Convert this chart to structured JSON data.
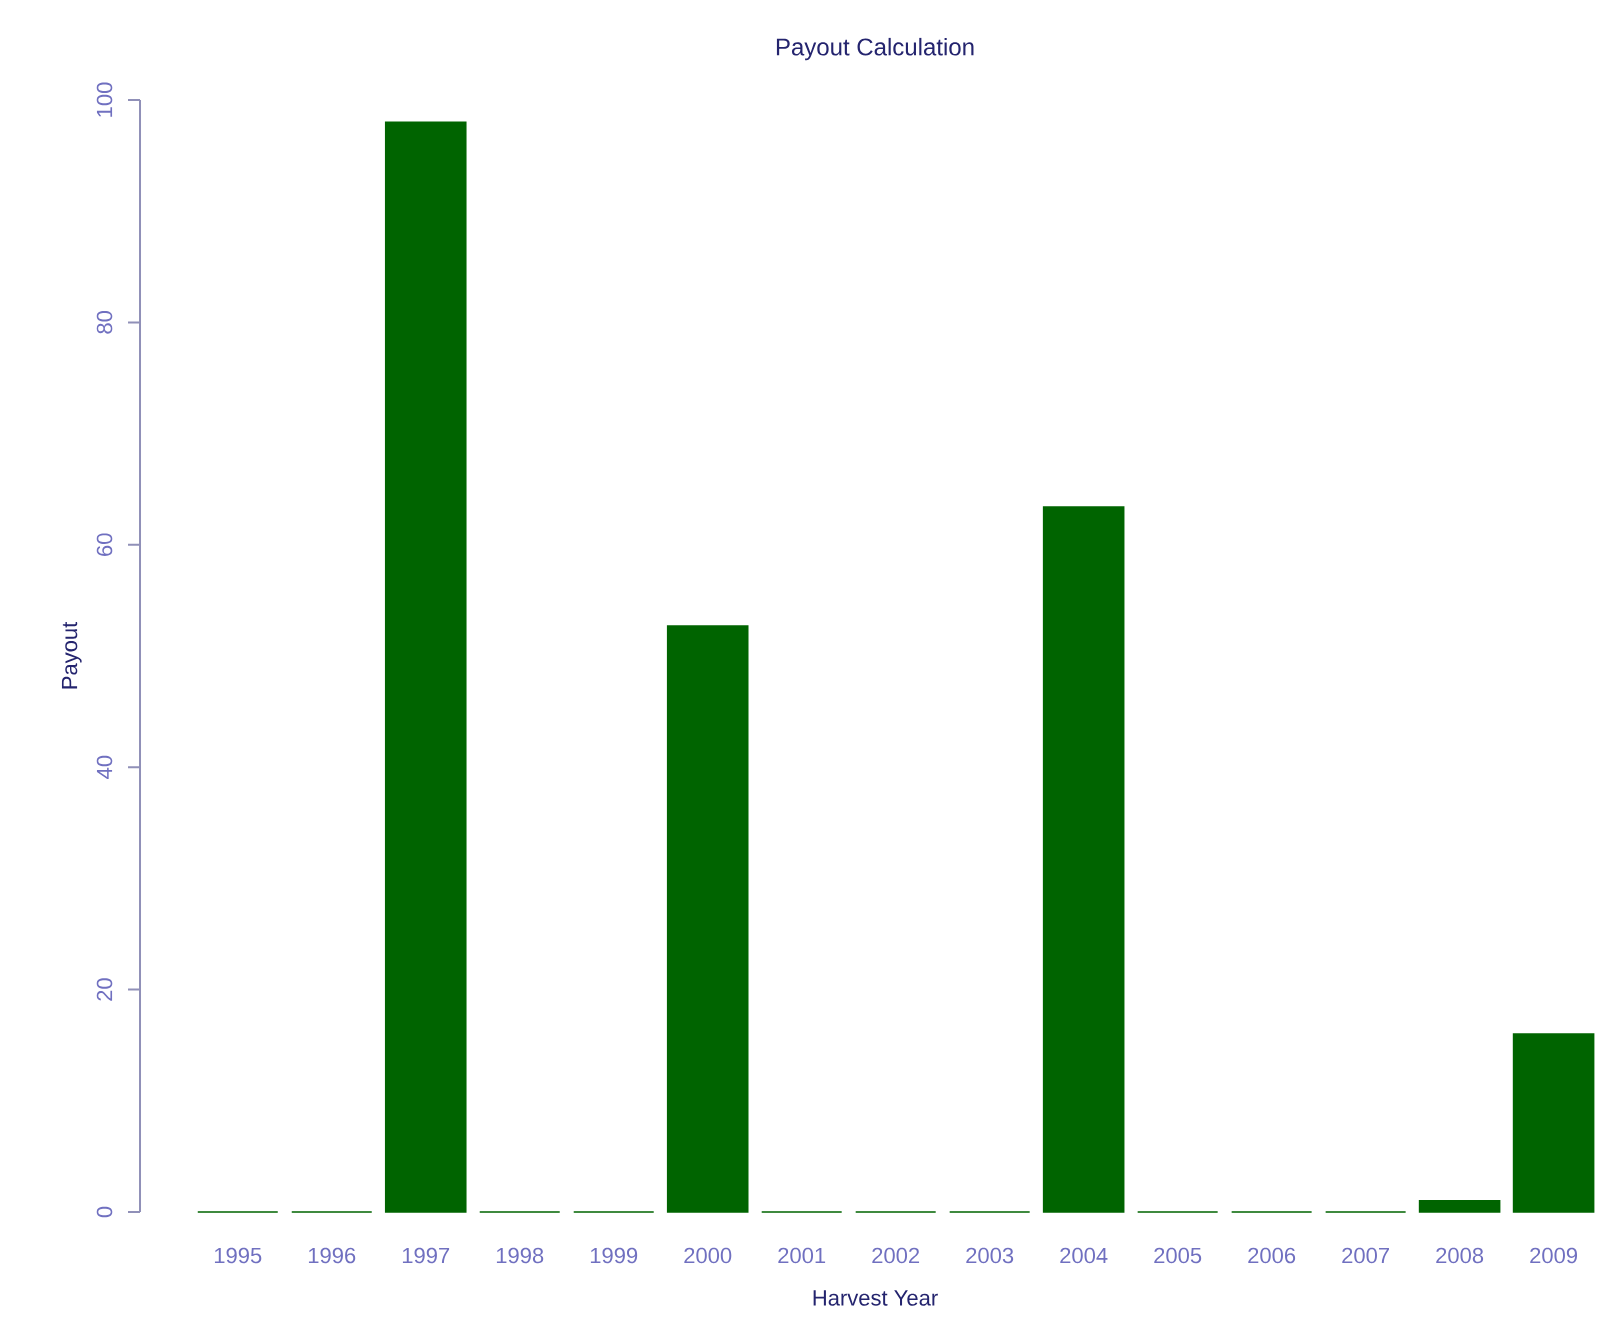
{
  "chart_data": {
    "type": "bar",
    "title": "Payout Calculation",
    "xlabel": "Harvest Year",
    "ylabel": "Payout",
    "categories": [
      "1995",
      "1996",
      "1997",
      "1998",
      "1999",
      "2000",
      "2001",
      "2002",
      "2003",
      "2004",
      "2005",
      "2006",
      "2007",
      "2008",
      "2009"
    ],
    "values": [
      0,
      0,
      98,
      0,
      0,
      52.7,
      0,
      0,
      0,
      63.4,
      0,
      0,
      0,
      1,
      16
    ],
    "color": "#006400",
    "ylim": [
      0,
      100
    ],
    "yticks": [
      0,
      20,
      40,
      60,
      80,
      100
    ]
  }
}
